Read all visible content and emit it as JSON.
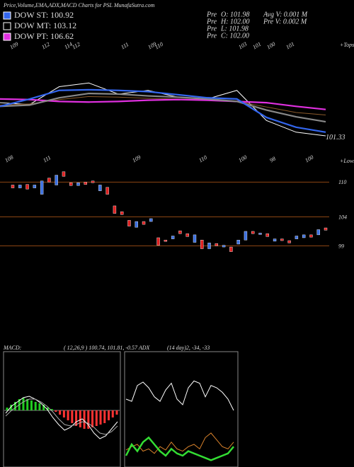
{
  "header": {
    "title": "Price,Volume,EMA,ADX,MACD Charts for PSL MunafaSutra.com"
  },
  "info": [
    {
      "a": "Pre",
      "b": "O: 101.98"
    },
    {
      "a": "Pre",
      "b": "H: 102.00"
    },
    {
      "a": "Pre",
      "b": "L: 101.98"
    },
    {
      "a": "Pre",
      "b": "C: 102.00"
    }
  ],
  "info2": [
    "Avg V: 0.001 M",
    "Pre V: 0.002 M"
  ],
  "chart_data": [
    {
      "type": "line",
      "ylim": [
        97,
        116
      ],
      "tops": [
        109,
        112,
        114,
        112,
        111,
        109,
        110,
        103,
        101,
        100,
        101
      ],
      "tops_label": "+Tops",
      "lows": [
        108,
        111,
        109,
        110,
        100,
        98,
        100
      ],
      "lows_label": "+Lows",
      "last_label": "101.33",
      "series": [
        {
          "color": "#ffffff",
          "values": [
            106.2,
            105.9,
            108.8,
            109.4,
            107.6,
            108.2,
            107.1,
            106.8,
            108.2,
            103.3,
            101.4,
            100.8
          ]
        },
        {
          "color": "#8b5a2b",
          "values": [
            105.8,
            106.0,
            106.7,
            107.2,
            107.1,
            106.9,
            106.8,
            106.7,
            106.4,
            105.5,
            104.6,
            104.2
          ]
        },
        {
          "name": "DOW PT: 106.62",
          "color": "#e030e0",
          "values": [
            106.8,
            106.7,
            106.4,
            106.3,
            106.4,
            106.6,
            106.7,
            106.6,
            106.4,
            106.2,
            105.6,
            105.1
          ]
        },
        {
          "name": "DOW MT: 103.12",
          "color": "#000000",
          "values": [
            105.6,
            105.8,
            107.0,
            107.7,
            107.6,
            107.3,
            107.1,
            106.8,
            106.4,
            105.0,
            103.9,
            103.1
          ]
        },
        {
          "name": "DOW ST: 100.92",
          "color": "#3366ee",
          "values": [
            105.6,
            106.8,
            108.2,
            108.3,
            108.2,
            108.0,
            107.5,
            107.0,
            106.8,
            103.8,
            102.2,
            101.4
          ]
        }
      ]
    },
    {
      "type": "candlestick",
      "ylim": [
        96,
        112
      ],
      "yticks": [
        110,
        104,
        99
      ],
      "grid": true,
      "up_color": "#3b6fe0",
      "down_color": "#e02020",
      "open": [
        109.5,
        109.0,
        109.6,
        109.0,
        107.9,
        110.7,
        109.5,
        111.8,
        109.9,
        109.4,
        110.0,
        110.2,
        108.5,
        109.1,
        105.9,
        104.9,
        103.4,
        102.2,
        103.2,
        103.2,
        100.4,
        100.0,
        100.2,
        101.6,
        101.1,
        99.6,
        100.0,
        98.5,
        99.4,
        98.8,
        98.8,
        99.3,
        100.0,
        101.5,
        101.0,
        101.1,
        99.8,
        100.2,
        99.9,
        100.2,
        100.4,
        100.9,
        100.9,
        102.1
      ],
      "close": [
        109.0,
        109.5,
        108.8,
        109.5,
        110.2,
        110.0,
        111.2,
        111.0,
        109.4,
        109.9,
        109.6,
        109.9,
        109.5,
        107.9,
        104.6,
        104.4,
        102.4,
        103.2,
        102.7,
        103.7,
        99.1,
        99.8,
        100.7,
        101.1,
        100.6,
        100.9,
        98.5,
        99.5,
        99.0,
        99.1,
        98.0,
        100.0,
        101.5,
        101.1,
        101.2,
        100.6,
        100.2,
        99.9,
        99.5,
        100.7,
        100.9,
        100.5,
        101.8,
        101.7
      ]
    },
    {
      "type": "macd",
      "title": "MACD:",
      "params": "( 12,26,9 ) 100.74, 101.81, -0.57 ADX",
      "ylim": [
        -40,
        40
      ],
      "histogram": [
        2,
        4,
        6,
        8,
        9,
        8,
        7,
        6,
        5,
        4,
        2,
        1,
        -1,
        -3,
        -5,
        -7,
        -9,
        -11,
        -12,
        -13,
        -13,
        -12,
        -11,
        -10,
        -9,
        -7,
        -5,
        -3
      ],
      "series": [
        {
          "color": "#ffffff",
          "values": [
            -2,
            3,
            6,
            9,
            10,
            8,
            5,
            1,
            -5,
            -10,
            -14,
            -12,
            -8,
            -6,
            -10,
            -16,
            -20,
            -18,
            -13,
            -8
          ]
        },
        {
          "color": "#aaaaaa",
          "values": [
            -4,
            0,
            3,
            6,
            8,
            8,
            6,
            3,
            -1,
            -6,
            -10,
            -11,
            -10,
            -8,
            -9,
            -12,
            -16,
            -17,
            -15,
            -11
          ]
        }
      ]
    },
    {
      "type": "adx",
      "params": "(14 day)2, -34, -33",
      "ylim": [
        0,
        100
      ],
      "series": [
        {
          "color": "#ffffff",
          "values": [
            60,
            58,
            72,
            75,
            70,
            62,
            58,
            68,
            74,
            60,
            55,
            70,
            76,
            74,
            62,
            72,
            70,
            66,
            60,
            50
          ]
        },
        {
          "color": "#d9822b",
          "values": [
            15,
            18,
            20,
            14,
            16,
            12,
            18,
            15,
            22,
            16,
            14,
            18,
            20,
            16,
            26,
            30,
            24,
            18,
            16,
            22
          ]
        },
        {
          "color": "#33dd33",
          "values": [
            10,
            20,
            14,
            22,
            26,
            20,
            14,
            10,
            16,
            12,
            10,
            14,
            12,
            10,
            8,
            6,
            8,
            10,
            12,
            18
          ]
        }
      ]
    }
  ]
}
